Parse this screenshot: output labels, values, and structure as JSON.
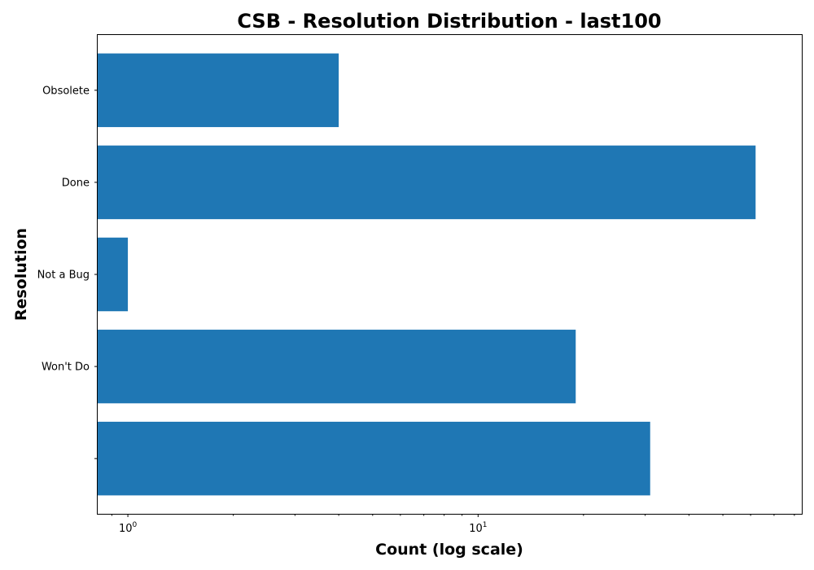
{
  "chart_data": {
    "type": "bar",
    "orientation": "horizontal",
    "title": "CSB - Resolution Distribution - last100",
    "xlabel": "Count (log scale)",
    "ylabel": "Resolution",
    "x_scale": "log",
    "xlim": [
      0.82,
      84
    ],
    "x_ticks": [
      {
        "value": 1,
        "base": "10",
        "exp": "0"
      },
      {
        "value": 10,
        "base": "10",
        "exp": "1"
      }
    ],
    "categories": [
      "",
      "Won't Do",
      "Not a Bug",
      "Done",
      "Obsolete"
    ],
    "values": [
      31,
      19,
      1,
      62,
      4
    ],
    "colors": {
      "bar": "#1f77b4"
    },
    "grid": false,
    "legend": "none"
  }
}
